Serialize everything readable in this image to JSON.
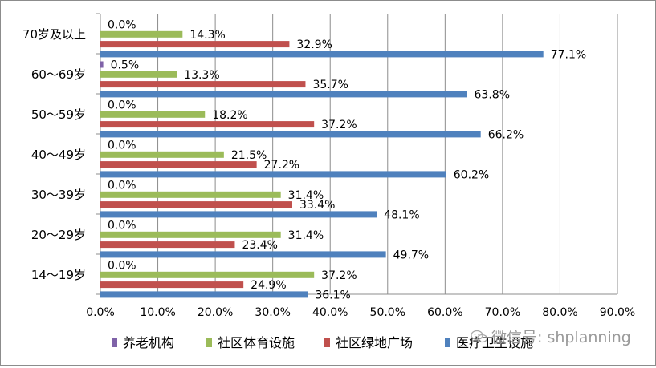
{
  "chart_data": {
    "type": "bar",
    "orientation": "horizontal",
    "categories": [
      "70岁及以上",
      "60～69岁",
      "50～59岁",
      "40～49岁",
      "30～39岁",
      "20～29岁",
      "14～19岁"
    ],
    "series": [
      {
        "name": "养老机构",
        "color": "#7f62a8",
        "values": [
          0.0,
          0.5,
          0.0,
          0.0,
          0.0,
          0.0,
          0.0
        ]
      },
      {
        "name": "社区体育设施",
        "color": "#9bbb59",
        "values": [
          14.3,
          13.3,
          18.2,
          21.5,
          31.4,
          31.4,
          37.2
        ]
      },
      {
        "name": "社区绿地广场",
        "color": "#c0504d",
        "values": [
          32.9,
          35.7,
          37.2,
          27.2,
          33.4,
          23.4,
          24.9
        ]
      },
      {
        "name": "医疗卫生设施",
        "color": "#4f81bd",
        "values": [
          77.1,
          63.8,
          66.2,
          60.2,
          48.1,
          49.7,
          36.1
        ]
      }
    ],
    "value_suffix": "%",
    "xlim": [
      0,
      90
    ],
    "xticks": [
      "0.0%",
      "10.0%",
      "20.0%",
      "30.0%",
      "40.0%",
      "50.0%",
      "60.0%",
      "70.0%",
      "80.0%",
      "90.0%"
    ],
    "grid": true,
    "legend_position": "bottom",
    "title": "",
    "xlabel": "",
    "ylabel": ""
  },
  "watermark": {
    "icon": "wechat-icon",
    "text": "微信号: shplanning"
  }
}
